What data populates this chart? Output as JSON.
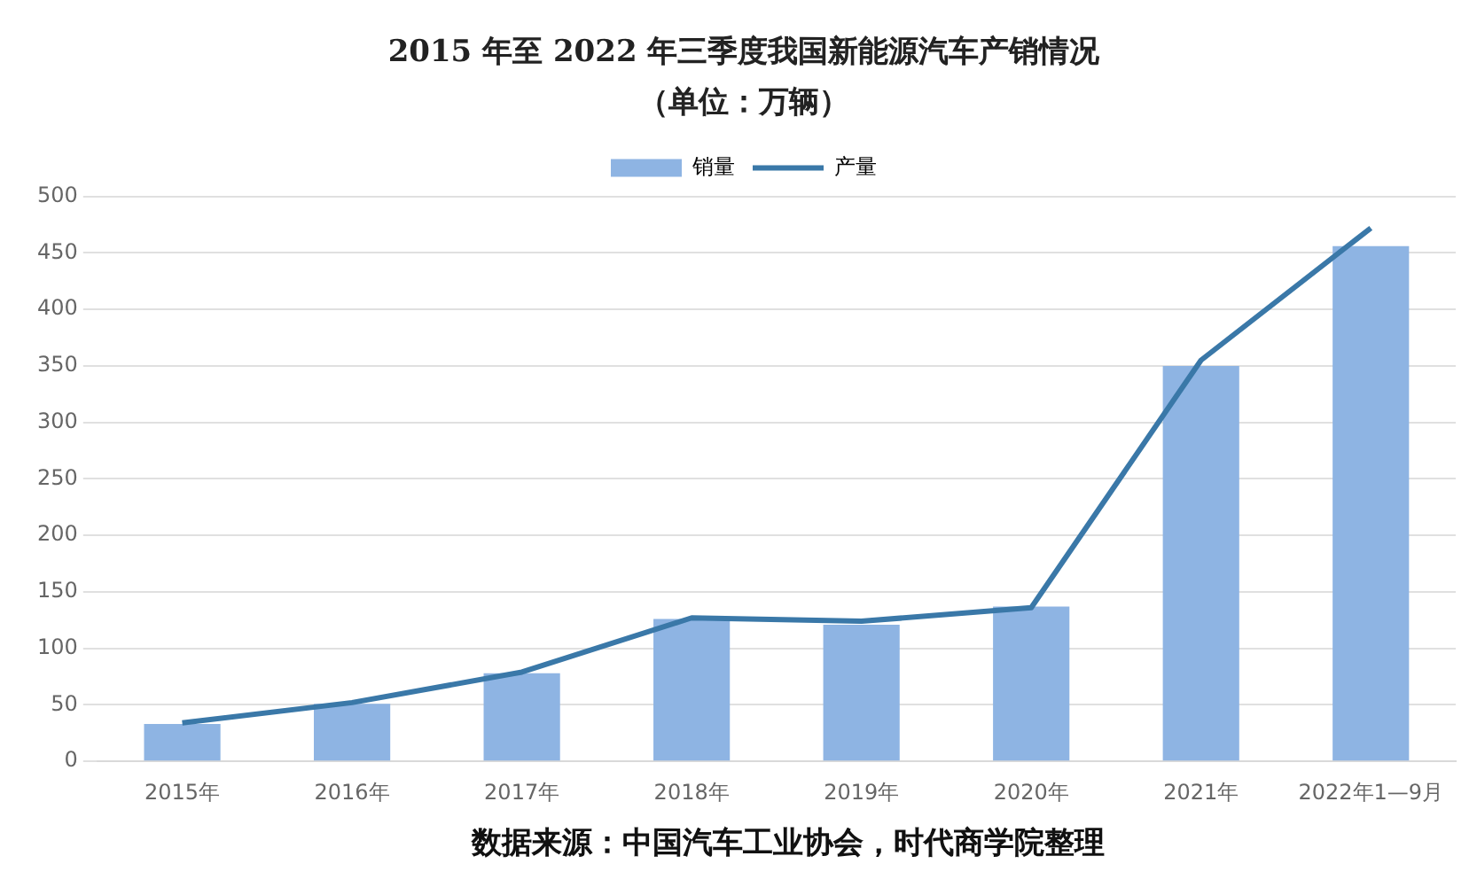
{
  "chart_data": {
    "type": "bar",
    "title": "2015 年至 2022 年三季度我国新能源汽车产销情况",
    "subtitle": "（单位：万辆）",
    "categories": [
      "2015年",
      "2016年",
      "2017年",
      "2018年",
      "2019年",
      "2020年",
      "2021年",
      "2022年1—9月"
    ],
    "series": [
      {
        "name": "销量",
        "color": "#8eb4e3",
        "values": [
          33,
          51,
          78,
          126,
          121,
          137,
          350,
          456
        ]
      },
      {
        "name": "产量",
        "type": "line",
        "color": "#3a78a8",
        "values": [
          34,
          52,
          79,
          127,
          124,
          136,
          355,
          472
        ]
      }
    ],
    "ylim": [
      0,
      500
    ],
    "yticks": [
      0,
      50,
      100,
      150,
      200,
      250,
      300,
      350,
      400,
      450,
      500
    ],
    "grid": "y",
    "legend": "top",
    "marker": "none",
    "annotations": [
      "数据来源：中国汽车工业协会，时代商学院整理"
    ]
  }
}
